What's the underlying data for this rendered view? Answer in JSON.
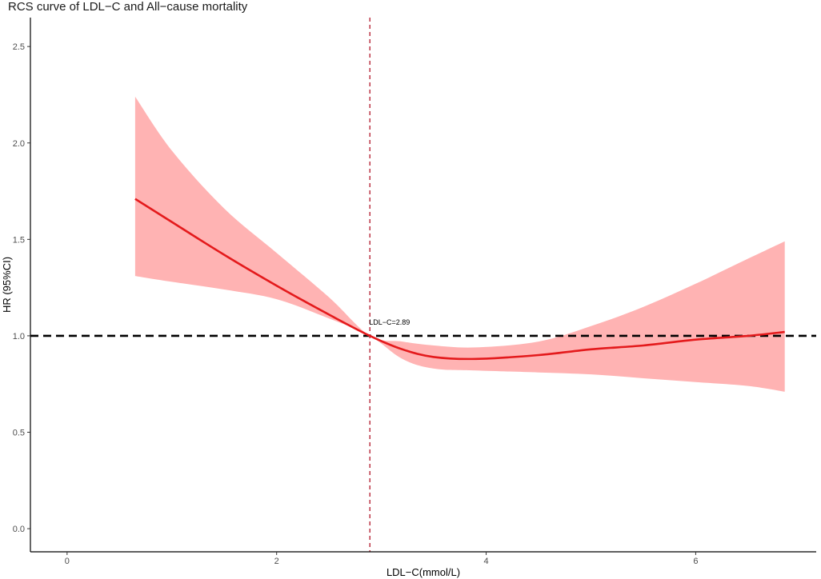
{
  "chart_data": {
    "type": "line",
    "title": "RCS curve of LDL−C and All−cause mortality",
    "xlabel": "LDL−C(mmol/L)",
    "ylabel": "HR (95%CI)",
    "xlim": [
      -0.35,
      7.15
    ],
    "ylim": [
      -0.12,
      2.65
    ],
    "x_ticks": [
      0,
      2,
      4,
      6
    ],
    "x_tick_labels": [
      "0",
      "2",
      "4",
      "6"
    ],
    "y_ticks": [
      0.0,
      0.5,
      1.0,
      1.5,
      2.0,
      2.5
    ],
    "y_tick_labels": [
      "0.0",
      "0.5",
      "1.0",
      "1.5",
      "2.0",
      "2.5"
    ],
    "grid": false,
    "legend": "none",
    "colors": {
      "curve": "#e41a1c",
      "band": "#ffb3b3",
      "reference_line": "#000000",
      "cutoff_line": "#b2182b"
    },
    "reference_line": {
      "y": 1.0,
      "style": "dashed"
    },
    "cutoff_line": {
      "x": 2.89,
      "style": "dashed"
    },
    "annotation": {
      "text": "LDL−C=2.89",
      "x": 2.89,
      "y": 1.0
    },
    "x": [
      0.65,
      1.0,
      1.5,
      2.0,
      2.5,
      2.89,
      3.2,
      3.5,
      3.9,
      4.5,
      5.0,
      5.5,
      6.0,
      6.5,
      6.85
    ],
    "hr": [
      1.71,
      1.59,
      1.42,
      1.26,
      1.11,
      1.0,
      0.93,
      0.89,
      0.88,
      0.9,
      0.93,
      0.95,
      0.98,
      1.0,
      1.02
    ],
    "lower": [
      1.31,
      1.28,
      1.24,
      1.19,
      1.09,
      1.0,
      0.88,
      0.83,
      0.82,
      0.81,
      0.8,
      0.78,
      0.76,
      0.74,
      0.71
    ],
    "upper": [
      2.24,
      1.96,
      1.66,
      1.43,
      1.2,
      1.0,
      0.97,
      0.95,
      0.94,
      0.97,
      1.05,
      1.15,
      1.27,
      1.4,
      1.49
    ]
  }
}
